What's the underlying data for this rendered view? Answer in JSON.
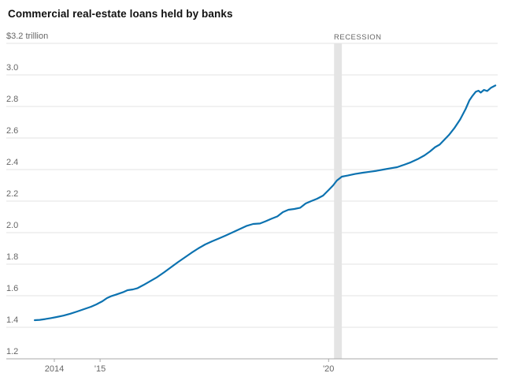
{
  "colors": {
    "background": "#ffffff",
    "line": "#0c72b0",
    "grid": "#e3e3e3",
    "axis": "#a8a8a8",
    "tick_text": "#666666",
    "title_text": "#111111",
    "recession_band": "#e4e4e4"
  },
  "chart_data": {
    "type": "line",
    "title": "Commercial real-estate loans held by banks",
    "unit": "$ trillion",
    "xlabel": "",
    "ylabel": "",
    "grid": true,
    "legend": "none",
    "xlim": [
      2013.5,
      2023.7
    ],
    "ylim": [
      1.2,
      3.2
    ],
    "y_ticks": [
      {
        "value": 3.2,
        "label": "$3.2 trillion"
      },
      {
        "value": 3.0,
        "label": "3.0"
      },
      {
        "value": 2.8,
        "label": "2.8"
      },
      {
        "value": 2.6,
        "label": "2.6"
      },
      {
        "value": 2.4,
        "label": "2.4"
      },
      {
        "value": 2.2,
        "label": "2.2"
      },
      {
        "value": 2.0,
        "label": "2.0"
      },
      {
        "value": 1.8,
        "label": "1.8"
      },
      {
        "value": 1.6,
        "label": "1.6"
      },
      {
        "value": 1.4,
        "label": "1.4"
      },
      {
        "value": 1.2,
        "label": "1.2"
      }
    ],
    "x_ticks": [
      {
        "value": 2014,
        "label": "2014"
      },
      {
        "value": 2015,
        "label": "'15"
      },
      {
        "value": 2020,
        "label": "'20"
      }
    ],
    "recession_band": {
      "start": 2020.12,
      "end": 2020.29,
      "label": "RECESSION"
    },
    "series": [
      {
        "name": "Commercial real-estate loans held by banks",
        "color": "#0c72b0",
        "points": [
          [
            2013.57,
            1.445
          ],
          [
            2013.68,
            1.447
          ],
          [
            2013.8,
            1.452
          ],
          [
            2013.92,
            1.458
          ],
          [
            2014.05,
            1.465
          ],
          [
            2014.2,
            1.474
          ],
          [
            2014.35,
            1.486
          ],
          [
            2014.5,
            1.5
          ],
          [
            2014.65,
            1.515
          ],
          [
            2014.8,
            1.53
          ],
          [
            2014.92,
            1.545
          ],
          [
            2015.05,
            1.565
          ],
          [
            2015.15,
            1.585
          ],
          [
            2015.25,
            1.598
          ],
          [
            2015.35,
            1.607
          ],
          [
            2015.5,
            1.622
          ],
          [
            2015.6,
            1.635
          ],
          [
            2015.72,
            1.64
          ],
          [
            2015.82,
            1.648
          ],
          [
            2015.95,
            1.668
          ],
          [
            2016.1,
            1.693
          ],
          [
            2016.25,
            1.718
          ],
          [
            2016.4,
            1.748
          ],
          [
            2016.55,
            1.78
          ],
          [
            2016.7,
            1.812
          ],
          [
            2016.85,
            1.842
          ],
          [
            2017.0,
            1.872
          ],
          [
            2017.15,
            1.9
          ],
          [
            2017.3,
            1.925
          ],
          [
            2017.45,
            1.945
          ],
          [
            2017.6,
            1.963
          ],
          [
            2017.75,
            1.982
          ],
          [
            2017.9,
            2.002
          ],
          [
            2018.05,
            2.022
          ],
          [
            2018.2,
            2.042
          ],
          [
            2018.35,
            2.055
          ],
          [
            2018.5,
            2.058
          ],
          [
            2018.62,
            2.072
          ],
          [
            2018.75,
            2.088
          ],
          [
            2018.88,
            2.103
          ],
          [
            2019.0,
            2.13
          ],
          [
            2019.12,
            2.145
          ],
          [
            2019.25,
            2.15
          ],
          [
            2019.38,
            2.158
          ],
          [
            2019.5,
            2.185
          ],
          [
            2019.62,
            2.2
          ],
          [
            2019.75,
            2.215
          ],
          [
            2019.88,
            2.235
          ],
          [
            2020.0,
            2.27
          ],
          [
            2020.1,
            2.3
          ],
          [
            2020.18,
            2.33
          ],
          [
            2020.29,
            2.355
          ],
          [
            2020.42,
            2.362
          ],
          [
            2020.58,
            2.372
          ],
          [
            2020.75,
            2.38
          ],
          [
            2020.9,
            2.386
          ],
          [
            2021.05,
            2.392
          ],
          [
            2021.2,
            2.4
          ],
          [
            2021.35,
            2.408
          ],
          [
            2021.5,
            2.415
          ],
          [
            2021.65,
            2.43
          ],
          [
            2021.8,
            2.446
          ],
          [
            2021.95,
            2.466
          ],
          [
            2022.1,
            2.49
          ],
          [
            2022.22,
            2.515
          ],
          [
            2022.33,
            2.542
          ],
          [
            2022.43,
            2.558
          ],
          [
            2022.53,
            2.588
          ],
          [
            2022.63,
            2.618
          ],
          [
            2022.75,
            2.662
          ],
          [
            2022.88,
            2.718
          ],
          [
            2023.0,
            2.785
          ],
          [
            2023.08,
            2.838
          ],
          [
            2023.15,
            2.868
          ],
          [
            2023.22,
            2.893
          ],
          [
            2023.28,
            2.9
          ],
          [
            2023.33,
            2.888
          ],
          [
            2023.4,
            2.905
          ],
          [
            2023.47,
            2.898
          ],
          [
            2023.55,
            2.918
          ],
          [
            2023.65,
            2.933
          ]
        ]
      }
    ]
  }
}
